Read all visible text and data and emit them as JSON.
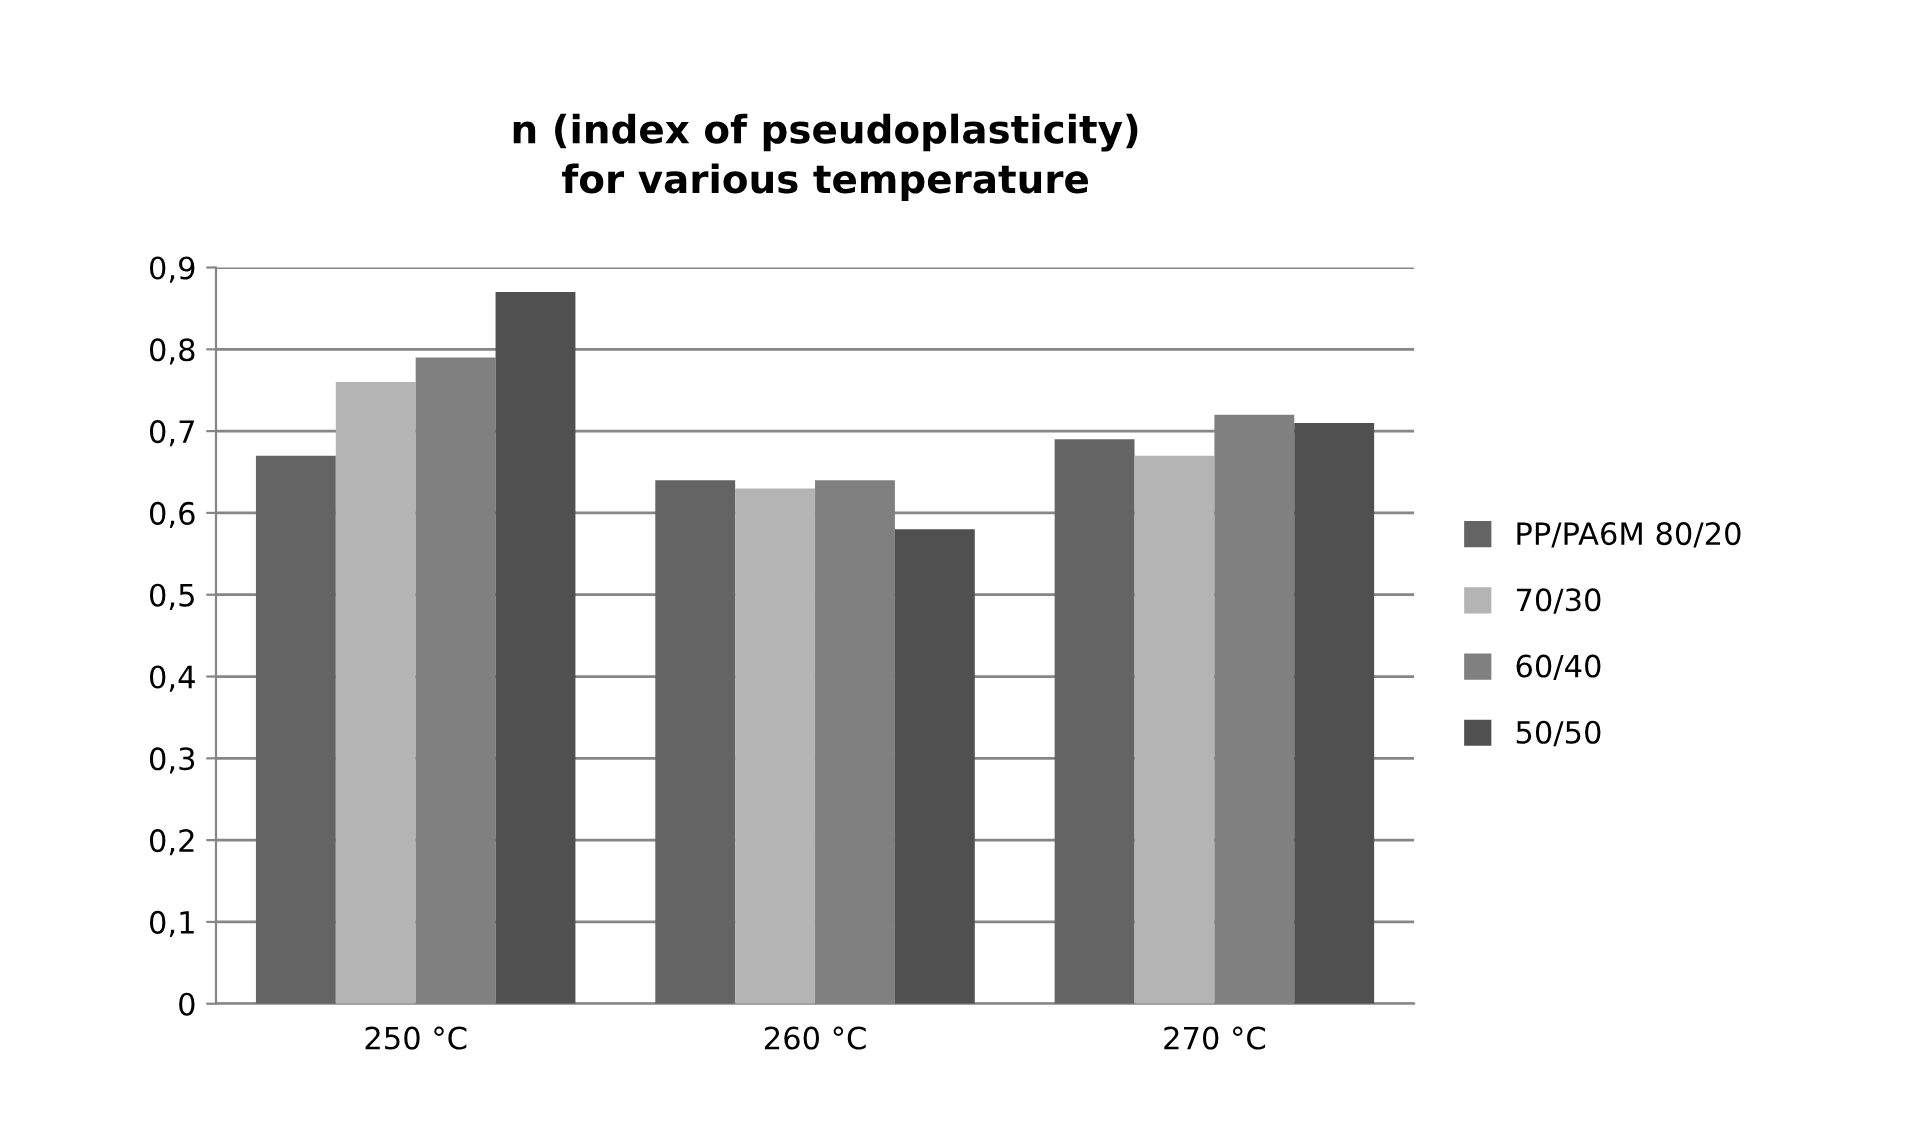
{
  "chart_data": {
    "type": "bar",
    "title": "n (index of pseudoplasticity)\nfor various temperature",
    "categories": [
      "250 °C",
      "260 °C",
      "270 °C"
    ],
    "series": [
      {
        "name": "PP/PA6M 80/20",
        "color": "#646464",
        "values": [
          0.67,
          0.64,
          0.69
        ]
      },
      {
        "name": "70/30",
        "color": "#b4b4b4",
        "values": [
          0.76,
          0.63,
          0.67
        ]
      },
      {
        "name": "60/40",
        "color": "#808080",
        "values": [
          0.79,
          0.64,
          0.72
        ]
      },
      {
        "name": "50/50",
        "color": "#505050",
        "values": [
          0.87,
          0.58,
          0.71
        ]
      }
    ],
    "ylim": [
      0,
      0.9
    ],
    "yticks": [
      0,
      {
        "value": 0.1,
        "label": "0,1"
      },
      {
        "value": 0.2,
        "label": "0,2"
      },
      {
        "value": 0.3,
        "label": "0,3"
      },
      {
        "value": 0.4,
        "label": "0,4"
      },
      {
        "value": 0.5,
        "label": "0,5"
      },
      {
        "value": 0.6,
        "label": "0,6"
      },
      {
        "value": 0.7,
        "label": "0,7"
      },
      {
        "value": 0.8,
        "label": "0,8"
      },
      {
        "value": 0.9,
        "label": "0,9"
      }
    ],
    "grid": "y",
    "legend": "right"
  }
}
